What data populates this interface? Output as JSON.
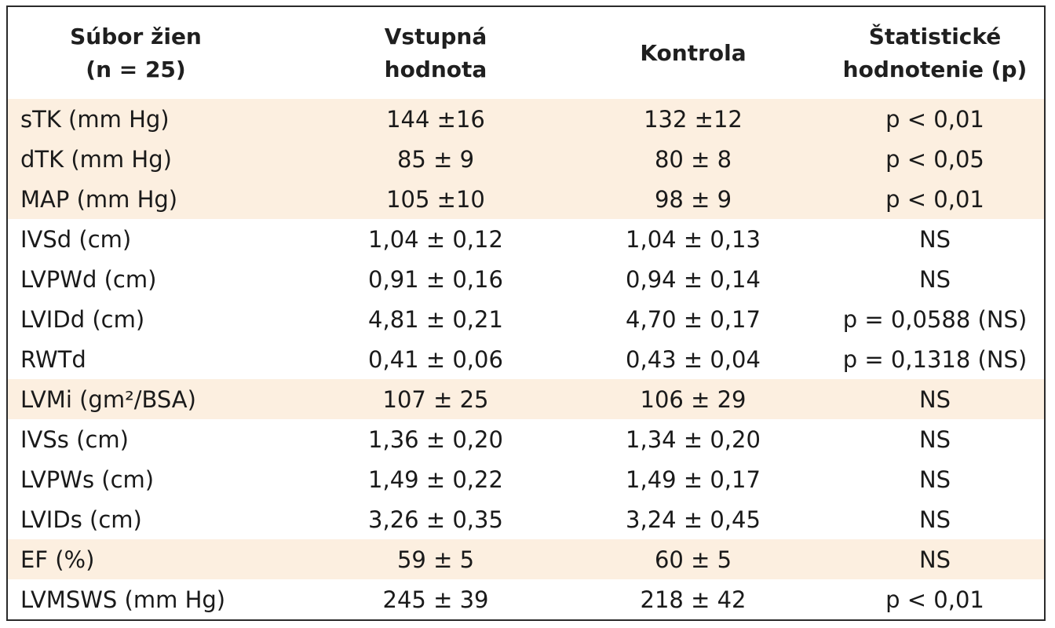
{
  "headers": [
    {
      "line1": "Súbor žien",
      "line2": "(n = 25)"
    },
    {
      "line1": "Vstupná",
      "line2": "hodnota"
    },
    {
      "line1": "Kontrola",
      "line2": ""
    },
    {
      "line1": "Štatistické",
      "line2": "hodnotenie (p)"
    }
  ],
  "rows": [
    {
      "label": "sTK (mm Hg)",
      "baseline": "144 ±16",
      "control": "132 ±12",
      "stat": "p < 0,01",
      "highlighted": true
    },
    {
      "label": "dTK (mm Hg)",
      "baseline": "85 ± 9",
      "control": "80 ± 8",
      "stat": "p < 0,05",
      "highlighted": true
    },
    {
      "label": "MAP (mm Hg)",
      "baseline": "105 ±10",
      "control": "98 ± 9",
      "stat": "p < 0,01",
      "highlighted": true
    },
    {
      "label": "IVSd (cm)",
      "baseline": "1,04 ± 0,12",
      "control": "1,04 ± 0,13",
      "stat": "NS",
      "highlighted": false
    },
    {
      "label": "LVPWd (cm)",
      "baseline": "0,91 ± 0,16",
      "control": "0,94 ± 0,14",
      "stat": "NS",
      "highlighted": false
    },
    {
      "label": "LVIDd (cm)",
      "baseline": "4,81 ± 0,21",
      "control": "4,70 ± 0,17",
      "stat": "p = 0,0588 (NS)",
      "highlighted": false
    },
    {
      "label": "RWTd",
      "baseline": "0,41 ± 0,06",
      "control": "0,43 ± 0,04",
      "stat": "p = 0,1318 (NS)",
      "highlighted": false
    },
    {
      "label": "LVMi (gm²/BSA)",
      "baseline": "107 ± 25",
      "control": "106 ± 29",
      "stat": "NS",
      "highlighted": true
    },
    {
      "label": "IVSs (cm)",
      "baseline": "1,36 ± 0,20",
      "control": "1,34 ± 0,20",
      "stat": "NS",
      "highlighted": false
    },
    {
      "label": "LVPWs (cm)",
      "baseline": "1,49 ± 0,22",
      "control": "1,49 ± 0,17",
      "stat": "NS",
      "highlighted": false
    },
    {
      "label": "LVIDs (cm)",
      "baseline": "3,26 ± 0,35",
      "control": "3,24 ± 0,45",
      "stat": "NS",
      "highlighted": false
    },
    {
      "label": "EF (%)",
      "baseline": "59 ± 5",
      "control": "60 ± 5",
      "stat": "NS",
      "highlighted": true
    },
    {
      "label": "LVMSWS (mm Hg)",
      "baseline": "245 ± 39",
      "control": "218 ± 42",
      "stat": "p < 0,01",
      "highlighted": false
    }
  ],
  "colors": {
    "highlight_row": "#fcefe0",
    "border": "#2a2a2a",
    "text": "#1a1a1a"
  }
}
